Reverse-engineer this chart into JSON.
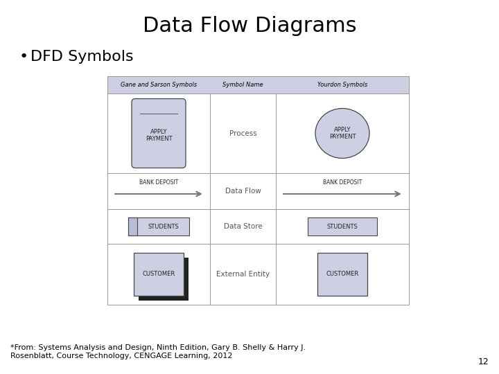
{
  "title": "Data Flow Diagrams",
  "bullet": "DFD Symbols",
  "footnote": "*From: Systems Analysis and Design, Ninth Edition, Gary B. Shelly & Harry J.\nRosenblatt, Course Technology, CENGAGE Learning, 2012",
  "page_number": "12",
  "bg_color": "#ffffff",
  "table_bg": "#cdd0e3",
  "header_bg": "#cdd0e3",
  "symbol_fill": "#cdd0e3",
  "border_color": "#999999",
  "col1_header": "Gane and Sarson Symbols",
  "col2_header": "Symbol Name",
  "col3_header": "Yourdon Symbols",
  "rows": [
    {
      "name": "Process",
      "gs_label": "APPLY\nPAYMENT",
      "y_label": "APPLY\nPAYMENT"
    },
    {
      "name": "Data Flow",
      "gs_label": "BANK DEPOSIT",
      "y_label": "BANK DEPOSIT"
    },
    {
      "name": "Data Store",
      "gs_label": "STUDENTS",
      "y_label": "STUDENTS"
    },
    {
      "name": "External Entity",
      "gs_label": "CUSTOMER",
      "y_label": "CUSTOMER"
    }
  ],
  "title_fontsize": 22,
  "bullet_fontsize": 16,
  "footnote_fontsize": 8
}
